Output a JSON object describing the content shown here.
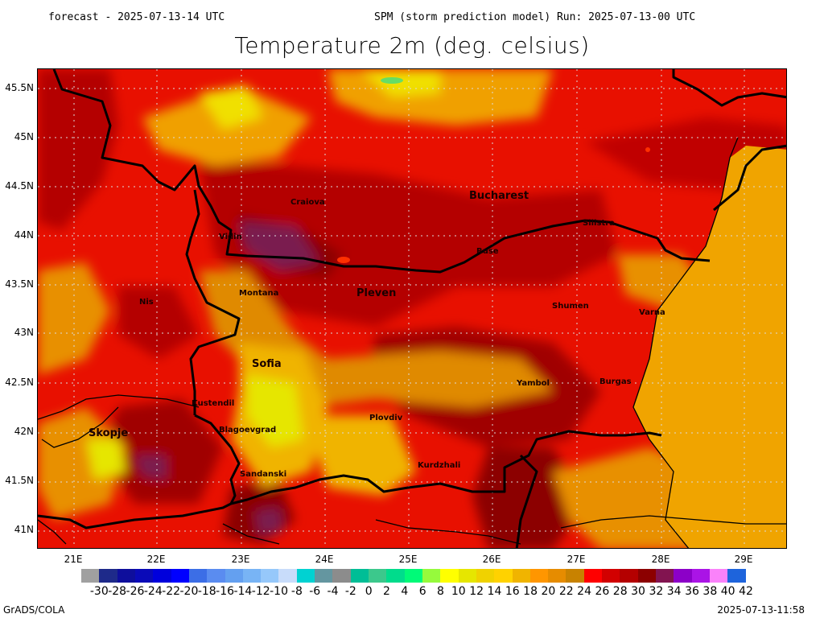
{
  "header": {
    "forecast": "forecast - 2025-07-13-14 UTC",
    "run": "SPM (storm prediction model) Run: 2025-07-13-00 UTC"
  },
  "title": "Temperature 2m (deg. celsius)",
  "map": {
    "lat_labels": [
      "45.5N",
      "45N",
      "44.5N",
      "44N",
      "43.5N",
      "43N",
      "42.5N",
      "42N",
      "41.5N",
      "41N"
    ],
    "lon_labels": [
      "21E",
      "22E",
      "23E",
      "24E",
      "25E",
      "26E",
      "27E",
      "28E",
      "29E"
    ],
    "sea_color": "#f0a400",
    "cities": [
      {
        "name": "Craiova",
        "size": "small"
      },
      {
        "name": "Bucharest",
        "size": "big"
      },
      {
        "name": "Silistra",
        "size": "small"
      },
      {
        "name": "Vidin",
        "size": "small"
      },
      {
        "name": "Ruse",
        "size": "small"
      },
      {
        "name": "Montana",
        "size": "small"
      },
      {
        "name": "Pleven",
        "size": "big"
      },
      {
        "name": "Nis",
        "size": "small"
      },
      {
        "name": "Shumen",
        "size": "small"
      },
      {
        "name": "Varna",
        "size": "small"
      },
      {
        "name": "Sofia",
        "size": "big"
      },
      {
        "name": "Yambol",
        "size": "small"
      },
      {
        "name": "Burgas",
        "size": "small"
      },
      {
        "name": "Kustendil",
        "size": "small"
      },
      {
        "name": "Plovdiv",
        "size": "small"
      },
      {
        "name": "Skopje",
        "size": "big"
      },
      {
        "name": "Blagoevgrad",
        "size": "small"
      },
      {
        "name": "Kurdzhali",
        "size": "small"
      },
      {
        "name": "Sandanski",
        "size": "small"
      }
    ]
  },
  "colorbar": {
    "colors": [
      "#a0a0a0",
      "#1e2a8a",
      "#0e0e9c",
      "#0a0ab8",
      "#0000dc",
      "#0000ff",
      "#3c6ee6",
      "#5a8cf0",
      "#64a0f0",
      "#78b4f5",
      "#96c8fa",
      "#c8dcfa",
      "#00d2d2",
      "#6496a0",
      "#8c8c8c",
      "#00be96",
      "#3cc88c",
      "#00dc8c",
      "#00fa78",
      "#96fa3c",
      "#ffff00",
      "#e6e600",
      "#f0d200",
      "#ffd200",
      "#f0b400",
      "#ff9600",
      "#e68c00",
      "#c88200",
      "#ff0000",
      "#d20000",
      "#b40000",
      "#8c0000",
      "#821450",
      "#8c00c8",
      "#aa14e6",
      "#fa82fa",
      "#1e64dc"
    ],
    "labels": [
      "-30",
      "-28",
      "-26",
      "-24",
      "-22",
      "-20",
      "-18",
      "-16",
      "-14",
      "-12",
      "-10",
      "-8",
      "-6",
      "-4",
      "-2",
      "0",
      "2",
      "4",
      "6",
      "8",
      "10",
      "12",
      "14",
      "16",
      "18",
      "20",
      "22",
      "24",
      "26",
      "28",
      "30",
      "32",
      "34",
      "36",
      "38",
      "40",
      "42"
    ]
  },
  "footer": {
    "left": "GrADS/COLA",
    "right": "2025-07-13-11:58"
  }
}
